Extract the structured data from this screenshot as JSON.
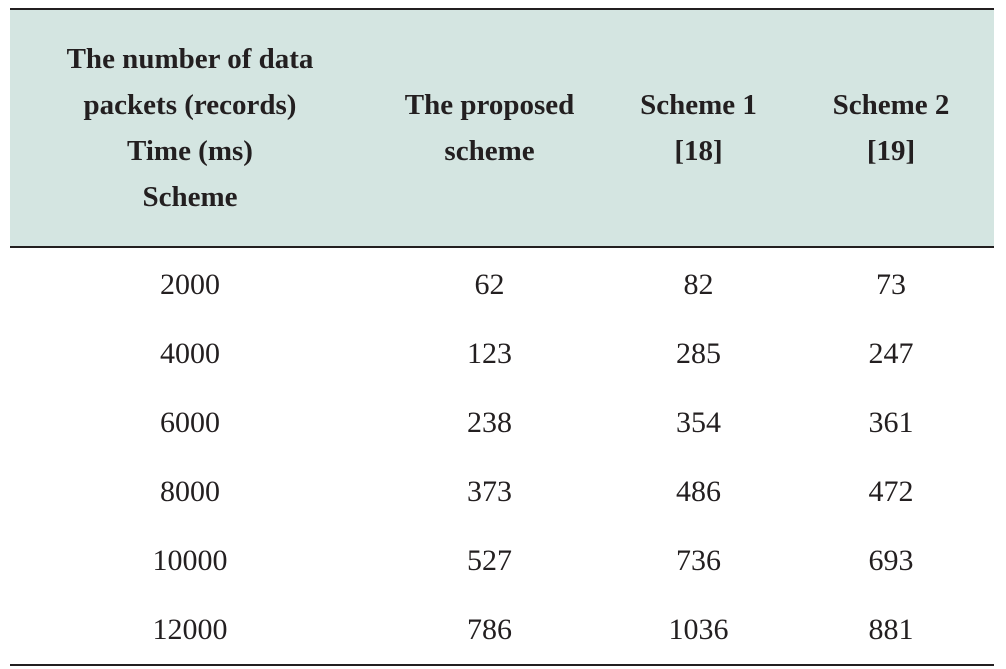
{
  "chart_data": {
    "type": "table",
    "header": {
      "first_cell": [
        "The number of data",
        "packets (records)",
        "Time (ms)",
        "Scheme"
      ],
      "columns": [
        [
          "The proposed",
          "scheme"
        ],
        [
          "Scheme 1",
          "[18]"
        ],
        [
          "Scheme 2",
          "[19]"
        ]
      ]
    },
    "rows": [
      [
        "2000",
        "62",
        "82",
        "73"
      ],
      [
        "4000",
        "123",
        "285",
        "247"
      ],
      [
        "6000",
        "238",
        "354",
        "361"
      ],
      [
        "8000",
        "373",
        "486",
        "472"
      ],
      [
        "10000",
        "527",
        "736",
        "693"
      ],
      [
        "12000",
        "786",
        "1036",
        "881"
      ]
    ],
    "colors": {
      "header_background": "#d4e5e1",
      "rule": "#231f20",
      "text": "#231f20"
    }
  }
}
